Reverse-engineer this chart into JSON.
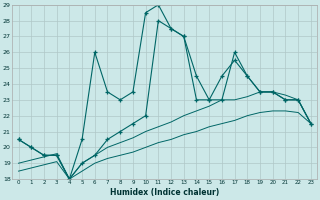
{
  "xlabel": "Humidex (Indice chaleur)",
  "x": [
    0,
    1,
    2,
    3,
    4,
    5,
    6,
    7,
    8,
    9,
    10,
    11,
    12,
    13,
    14,
    15,
    16,
    17,
    18,
    19,
    20,
    21,
    22,
    23
  ],
  "line1": [
    20.5,
    20.0,
    19.5,
    19.5,
    18.0,
    20.5,
    26.0,
    23.5,
    23.0,
    23.5,
    28.5,
    29.0,
    27.5,
    27.0,
    23.0,
    23.0,
    23.0,
    26.0,
    24.5,
    23.5,
    23.5,
    23.0,
    23.0,
    21.5
  ],
  "line2": [
    20.5,
    20.0,
    19.5,
    19.5,
    18.0,
    19.0,
    19.5,
    20.5,
    21.0,
    21.5,
    22.0,
    28.0,
    27.5,
    27.0,
    24.5,
    23.0,
    24.5,
    25.5,
    24.5,
    23.5,
    23.5,
    23.0,
    23.0,
    21.5
  ],
  "line3": [
    19.0,
    19.2,
    19.4,
    19.6,
    18.0,
    19.0,
    19.5,
    20.0,
    20.3,
    20.6,
    21.0,
    21.3,
    21.6,
    22.0,
    22.3,
    22.6,
    23.0,
    23.0,
    23.2,
    23.5,
    23.5,
    23.3,
    23.0,
    21.5
  ],
  "line4": [
    18.5,
    18.7,
    18.9,
    19.1,
    18.0,
    18.5,
    19.0,
    19.3,
    19.5,
    19.7,
    20.0,
    20.3,
    20.5,
    20.8,
    21.0,
    21.3,
    21.5,
    21.7,
    22.0,
    22.2,
    22.3,
    22.3,
    22.2,
    21.5
  ],
  "bg_color": "#cce8e8",
  "grid_color": "#b0c8c8",
  "line_color": "#006666",
  "ylim": [
    18,
    29
  ],
  "xlim": [
    -0.5,
    23.5
  ]
}
